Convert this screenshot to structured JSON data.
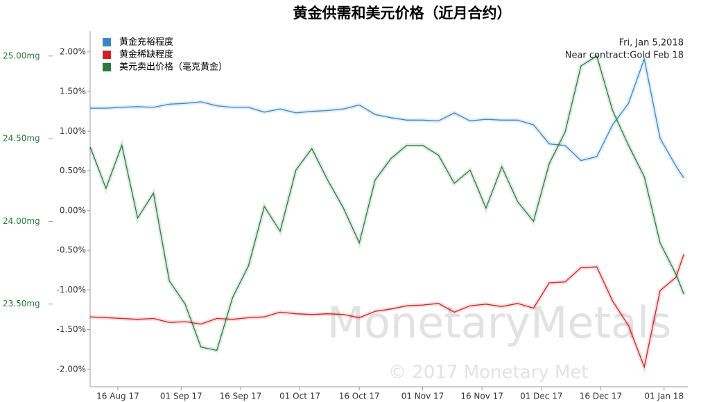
{
  "chart_data": {
    "type": "line",
    "title": "黄金供需和美元价格（近月合约）",
    "annotations": [
      "Fri, Jan 5,2018",
      "Near contract:Gold Feb 18"
    ],
    "watermark": "MonetaryMetals",
    "copyright": "© 2017 Monetary Met",
    "x": [
      "2017-08-09",
      "2017-08-13",
      "2017-08-17",
      "2017-08-21",
      "2017-08-25",
      "2017-08-29",
      "2017-09-02",
      "2017-09-06",
      "2017-09-10",
      "2017-09-14",
      "2017-09-18",
      "2017-09-22",
      "2017-09-26",
      "2017-09-30",
      "2017-10-04",
      "2017-10-08",
      "2017-10-12",
      "2017-10-16",
      "2017-10-20",
      "2017-10-24",
      "2017-10-28",
      "2017-11-01",
      "2017-11-05",
      "2017-11-09",
      "2017-11-13",
      "2017-11-17",
      "2017-11-21",
      "2017-11-25",
      "2017-11-29",
      "2017-12-03",
      "2017-12-07",
      "2017-12-11",
      "2017-12-15",
      "2017-12-19",
      "2017-12-23",
      "2017-12-27",
      "2017-12-31",
      "2018-01-04",
      "2018-01-06"
    ],
    "xlim": [
      "2017-08-09",
      "2018-01-07"
    ],
    "xticks": [
      {
        "value": "2017-08-16",
        "label": "16 Aug 17"
      },
      {
        "value": "2017-09-01",
        "label": "01 Sep 17"
      },
      {
        "value": "2017-09-16",
        "label": "16 Sep 17"
      },
      {
        "value": "2017-10-01",
        "label": "01 Oct 17"
      },
      {
        "value": "2017-10-16",
        "label": "16 Oct 17"
      },
      {
        "value": "2017-11-01",
        "label": "01 Nov 17"
      },
      {
        "value": "2017-11-16",
        "label": "16 Nov 17"
      },
      {
        "value": "2017-12-01",
        "label": "01 Dec 17"
      },
      {
        "value": "2017-12-16",
        "label": "16 Dec 17"
      },
      {
        "value": "2018-01-01",
        "label": "01 Jan 18"
      }
    ],
    "ylim": [
      -2.22,
      2.26
    ],
    "yticks": [
      {
        "value": 2,
        "label": "2.00%"
      },
      {
        "value": 1.5,
        "label": "1.50%"
      },
      {
        "value": 1,
        "label": "1.00%"
      },
      {
        "value": 0.5,
        "label": "0.50%"
      },
      {
        "value": 0,
        "label": "0.00%"
      },
      {
        "value": -0.5,
        "label": "-0.50%"
      },
      {
        "value": -1,
        "label": "-1.00%"
      },
      {
        "value": -1.5,
        "label": "-1.50%"
      },
      {
        "value": -2,
        "label": "-2.00%"
      }
    ],
    "y2lim": [
      23.0,
      25.15
    ],
    "y2ticks": [
      {
        "value": 25,
        "label": "25.00mg"
      },
      {
        "value": 24.5,
        "label": "24.50mg"
      },
      {
        "value": 24,
        "label": "24.00mg"
      },
      {
        "value": 23.5,
        "label": "23.50mg"
      }
    ],
    "series": [
      {
        "name": "黄金充裕程度",
        "color": "#3a85c8",
        "values": [
          1.29,
          1.29,
          1.3,
          1.31,
          1.3,
          1.34,
          1.35,
          1.37,
          1.32,
          1.3,
          1.3,
          1.24,
          1.28,
          1.23,
          1.25,
          1.26,
          1.28,
          1.33,
          1.21,
          1.17,
          1.14,
          1.14,
          1.13,
          1.23,
          1.13,
          1.15,
          1.14,
          1.14,
          1.08,
          0.84,
          0.82,
          0.63,
          0.68,
          1.08,
          1.35,
          1.91,
          0.91,
          0.56,
          0.41
        ]
      },
      {
        "name": "黄金稀缺程度",
        "color": "#cc2222",
        "values": [
          -1.34,
          -1.35,
          -1.36,
          -1.37,
          -1.36,
          -1.41,
          -1.4,
          -1.43,
          -1.36,
          -1.37,
          -1.35,
          -1.34,
          -1.28,
          -1.3,
          -1.31,
          -1.3,
          -1.31,
          -1.35,
          -1.27,
          -1.24,
          -1.2,
          -1.19,
          -1.17,
          -1.28,
          -1.2,
          -1.18,
          -1.21,
          -1.17,
          -1.23,
          -0.91,
          -0.9,
          -0.72,
          -0.71,
          -1.14,
          -1.45,
          -1.97,
          -1.01,
          -0.84,
          -0.55
        ]
      },
      {
        "name": "美元卖出价格（毫克黄金）",
        "color": "#2a7a3c",
        "axis": "y2",
        "values": [
          24.45,
          24.2,
          24.46,
          24.02,
          24.17,
          23.64,
          23.5,
          23.24,
          23.22,
          23.54,
          23.73,
          24.09,
          23.94,
          24.31,
          24.44,
          24.25,
          24.08,
          23.87,
          24.25,
          24.38,
          24.46,
          24.46,
          24.4,
          24.23,
          24.31,
          24.08,
          24.33,
          24.12,
          24.0,
          24.35,
          24.54,
          24.94,
          25.0,
          24.67,
          24.46,
          24.27,
          23.87,
          23.68,
          23.56
        ]
      }
    ]
  }
}
